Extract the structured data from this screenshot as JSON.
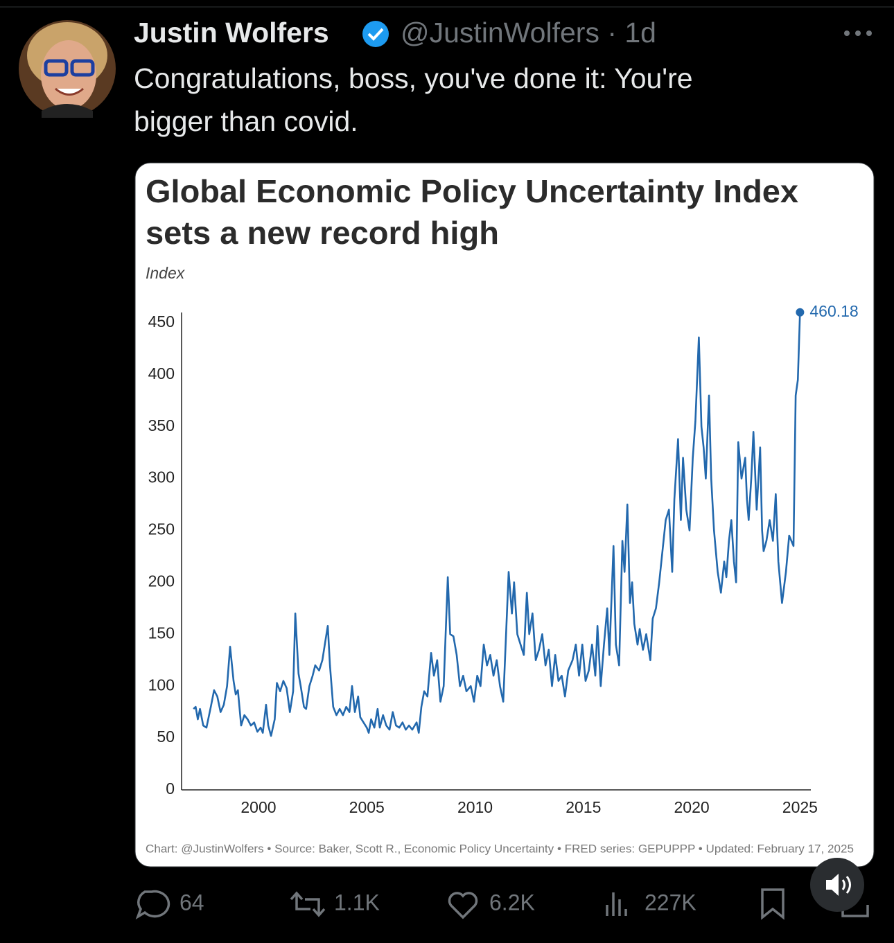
{
  "tweet": {
    "author": "Justin Wolfers",
    "handle_time": "@JustinWolfers · 1d",
    "text": [
      "Congratulations, boss, you've done it: You're",
      "bigger than covid."
    ],
    "metrics": {
      "replies": "64",
      "reposts": "1.1K",
      "likes": "6.2K",
      "views": "227K"
    }
  },
  "chart_data": {
    "type": "line",
    "title": [
      "Global Economic Policy Uncertainty Index",
      "sets a new record high"
    ],
    "ylabel": "Index",
    "source": "Chart: @JustinWolfers • Source: Baker, Scott R., Economic Policy Uncertainty • FRED series: GEPUPPP • Updated: February 17, 2025",
    "xlim": [
      1996.45,
      2025.5
    ],
    "xticks": [
      2000,
      2005,
      2010,
      2015,
      2020,
      2025
    ],
    "ylim": [
      0,
      460
    ],
    "yticks": [
      0,
      50,
      100,
      150,
      200,
      250,
      300,
      350,
      400,
      450
    ],
    "x": [
      1997.0,
      1997.1,
      1997.2,
      1997.3,
      1997.45,
      1997.6,
      1997.8,
      1997.95,
      1998.1,
      1998.25,
      1998.4,
      1998.55,
      1998.69,
      1998.85,
      1998.95,
      1999.05,
      1999.2,
      1999.35,
      1999.5,
      1999.65,
      1999.8,
      1999.95,
      2000.1,
      2000.2,
      2000.35,
      2000.45,
      2000.58,
      2000.75,
      2000.85,
      2001.0,
      2001.15,
      2001.3,
      2001.45,
      2001.6,
      2001.7,
      2001.85,
      2001.95,
      2002.1,
      2002.2,
      2002.35,
      2002.5,
      2002.62,
      2002.8,
      2002.95,
      2003.1,
      2003.2,
      2003.3,
      2003.45,
      2003.6,
      2003.75,
      2003.9,
      2004.05,
      2004.2,
      2004.32,
      2004.45,
      2004.6,
      2004.7,
      2004.85,
      2005.0,
      2005.09,
      2005.2,
      2005.35,
      2005.5,
      2005.6,
      2005.75,
      2005.9,
      2006.05,
      2006.2,
      2006.35,
      2006.5,
      2006.65,
      2006.8,
      2006.95,
      2007.1,
      2007.3,
      2007.4,
      2007.52,
      2007.65,
      2007.8,
      2007.97,
      2008.1,
      2008.25,
      2008.4,
      2008.55,
      2008.74,
      2008.85,
      2009.0,
      2009.15,
      2009.3,
      2009.45,
      2009.6,
      2009.8,
      2009.95,
      2010.1,
      2010.25,
      2010.4,
      2010.55,
      2010.7,
      2010.85,
      2011.0,
      2011.15,
      2011.3,
      2011.45,
      2011.55,
      2011.7,
      2011.8,
      2011.95,
      2012.1,
      2012.25,
      2012.39,
      2012.5,
      2012.65,
      2012.8,
      2012.95,
      2013.1,
      2013.25,
      2013.4,
      2013.55,
      2013.7,
      2013.85,
      2014.0,
      2014.15,
      2014.3,
      2014.5,
      2014.65,
      2014.8,
      2014.95,
      2015.1,
      2015.25,
      2015.4,
      2015.55,
      2015.65,
      2015.8,
      2015.95,
      2016.1,
      2016.2,
      2016.39,
      2016.5,
      2016.65,
      2016.8,
      2016.9,
      2017.03,
      2017.15,
      2017.25,
      2017.35,
      2017.5,
      2017.6,
      2017.75,
      2017.9,
      2018.09,
      2018.2,
      2018.35,
      2018.5,
      2018.65,
      2018.8,
      2018.95,
      2019.1,
      2019.2,
      2019.37,
      2019.5,
      2019.6,
      2019.75,
      2019.9,
      2020.05,
      2020.17,
      2020.33,
      2020.45,
      2020.55,
      2020.65,
      2020.8,
      2020.9,
      2021.03,
      2021.2,
      2021.35,
      2021.5,
      2021.6,
      2021.72,
      2021.83,
      2021.95,
      2022.05,
      2022.15,
      2022.3,
      2022.47,
      2022.55,
      2022.63,
      2022.75,
      2022.85,
      2023.0,
      2023.16,
      2023.25,
      2023.32,
      2023.45,
      2023.6,
      2023.75,
      2023.88,
      2024.0,
      2024.17,
      2024.35,
      2024.5,
      2024.6,
      2024.7,
      2024.8,
      2024.9,
      2025.0
    ],
    "series": [
      {
        "color": "#2268ad",
        "values": [
          78,
          80,
          68,
          78,
          62,
          60,
          80,
          96,
          90,
          75,
          82,
          100,
          138,
          105,
          92,
          96,
          62,
          72,
          68,
          62,
          65,
          56,
          60,
          55,
          82,
          62,
          52,
          68,
          103,
          95,
          105,
          98,
          75,
          95,
          170,
          112,
          100,
          80,
          78,
          100,
          110,
          120,
          115,
          125,
          145,
          158,
          120,
          80,
          72,
          78,
          72,
          80,
          75,
          100,
          75,
          90,
          70,
          65,
          60,
          55,
          68,
          60,
          78,
          60,
          72,
          62,
          58,
          75,
          62,
          60,
          65,
          58,
          62,
          58,
          65,
          55,
          80,
          95,
          90,
          132,
          110,
          125,
          85,
          100,
          205,
          150,
          148,
          130,
          100,
          110,
          95,
          100,
          85,
          110,
          100,
          140,
          120,
          130,
          110,
          125,
          100,
          85,
          160,
          210,
          170,
          200,
          150,
          140,
          130,
          190,
          150,
          170,
          125,
          135,
          150,
          120,
          135,
          100,
          130,
          105,
          110,
          90,
          115,
          125,
          140,
          110,
          140,
          105,
          115,
          140,
          110,
          158,
          100,
          140,
          175,
          130,
          235,
          140,
          120,
          240,
          210,
          275,
          180,
          200,
          160,
          140,
          155,
          135,
          150,
          125,
          165,
          175,
          200,
          230,
          260,
          270,
          210,
          280,
          338,
          260,
          320,
          270,
          250,
          320,
          355,
          436,
          350,
          330,
          300,
          380,
          300,
          250,
          210,
          190,
          220,
          205,
          240,
          260,
          220,
          200,
          335,
          300,
          320,
          280,
          260,
          300,
          345,
          270,
          330,
          250,
          230,
          240,
          260,
          240,
          285,
          220,
          180,
          210,
          245,
          240,
          235,
          380,
          395,
          460.18
        ]
      }
    ]
  }
}
